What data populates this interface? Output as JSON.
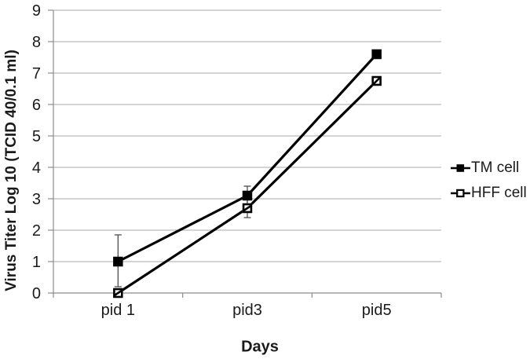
{
  "chart_data": {
    "type": "line",
    "xlabel": "Days",
    "ylabel": "Virus Titer Log 10 (TCID 40/0.1 ml)",
    "categories": [
      "pid 1",
      "pid3",
      "pid5"
    ],
    "ylim": [
      0,
      9
    ],
    "ytick_step": 1,
    "grid": "horizontal",
    "legend_position": "right",
    "series": [
      {
        "name": "TM cell",
        "marker": "filled-square",
        "color": "#000000",
        "values": [
          1.0,
          3.1,
          7.6
        ],
        "error_bars": [
          {
            "plus": 0.85,
            "minus": 0.8
          },
          {
            "plus": 0.3,
            "minus": 0.3
          },
          {
            "plus": 0,
            "minus": 0
          }
        ]
      },
      {
        "name": "HFF cell",
        "marker": "open-square",
        "color": "#000000",
        "values": [
          0.0,
          2.7,
          6.75
        ],
        "error_bars": [
          {
            "plus": 0,
            "minus": 0
          },
          {
            "plus": 0.3,
            "minus": 0.3
          },
          {
            "plus": 0,
            "minus": 0
          }
        ]
      }
    ]
  },
  "style": {
    "background": "#ffffff",
    "gridline_color": "#a9a9a9",
    "axis_color": "#8c8c8c",
    "error_bar_color": "#4d4d4d",
    "text_color": "#1a1a1a",
    "series_color": "#000000"
  }
}
